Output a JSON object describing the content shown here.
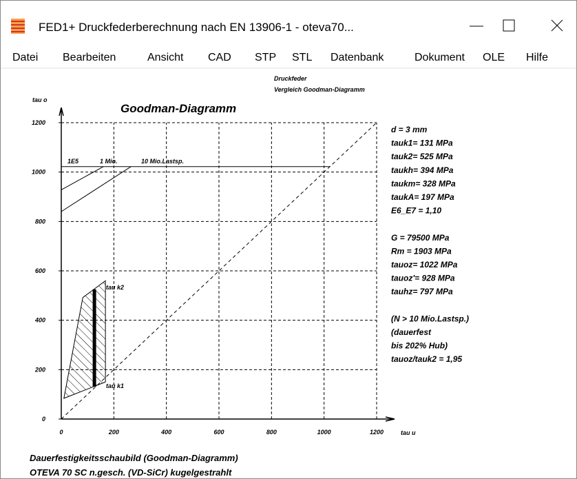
{
  "window": {
    "title": "FED1+  Druckfederberechnung nach EN 13906-1  -  oteva70..."
  },
  "menu": [
    "Datei",
    "Bearbeiten",
    "Ansicht",
    "CAD",
    "STP",
    "STL",
    "Datenbank",
    "Dokument",
    "OLE",
    "Hilfe"
  ],
  "header": [
    "Druckfeder",
    "Vergleich Goodman-Diagramm"
  ],
  "diagram": {
    "title": "Goodman-Diagramm",
    "ylabel": "tau o",
    "xlabel": "tau u",
    "xlim": [
      0,
      1200
    ],
    "ylim": [
      0,
      1200
    ],
    "xticks": [
      0,
      200,
      400,
      600,
      800,
      1000,
      1200
    ],
    "yticks": [
      0,
      200,
      400,
      600,
      800,
      1000,
      1200
    ],
    "grid": true,
    "lines": [
      {
        "x": [
          0,
          1200
        ],
        "y": [
          0,
          1200
        ],
        "style": "dashed"
      },
      {
        "x": [
          0,
          1022
        ],
        "y": [
          1022,
          1022
        ],
        "style": "solid"
      },
      {
        "x": [
          0,
          160
        ],
        "y": [
          928,
          1022
        ],
        "style": "solid"
      },
      {
        "x": [
          0,
          265
        ],
        "y": [
          840,
          1022
        ],
        "style": "solid"
      },
      {
        "x": [
          10,
          82,
          168,
          168,
          10
        ],
        "y": [
          84,
          492,
          560,
          150,
          84
        ],
        "style": "hatched"
      },
      {
        "x": [
          126,
          126
        ],
        "y": [
          131,
          525
        ],
        "style": "thick"
      }
    ],
    "line_labels": [
      "1E5",
      "1 Mio.",
      "10 Mio.Lastsp."
    ],
    "band_labels": [
      "tau k2",
      "tau k1"
    ]
  },
  "parameters": [
    [
      "d  = 3 mm",
      "tauk1=  131 MPa",
      "tauk2=  525 MPa",
      "taukh=  394 MPa",
      "taukm=  328 MPa",
      "taukA=  197 MPa",
      "E6_E7 = 1,10"
    ],
    [
      "G =  79500 MPa",
      "Rm =  1903 MPa",
      "tauoz= 1022 MPa",
      "tauoz'=  928 MPa",
      "tauhz=  797 MPa"
    ],
    [
      "(N > 10 Mio.Lastsp.)",
      "(dauerfest",
      "bis 202% Hub)",
      "tauoz/tauk2 = 1,95"
    ]
  ],
  "footer": [
    "Dauerfestigkeitsschaubild (Goodman-Diagramm)",
    "OTEVA 70 SC n.gesch. (VD-SiCr) kugelgestrahlt"
  ]
}
